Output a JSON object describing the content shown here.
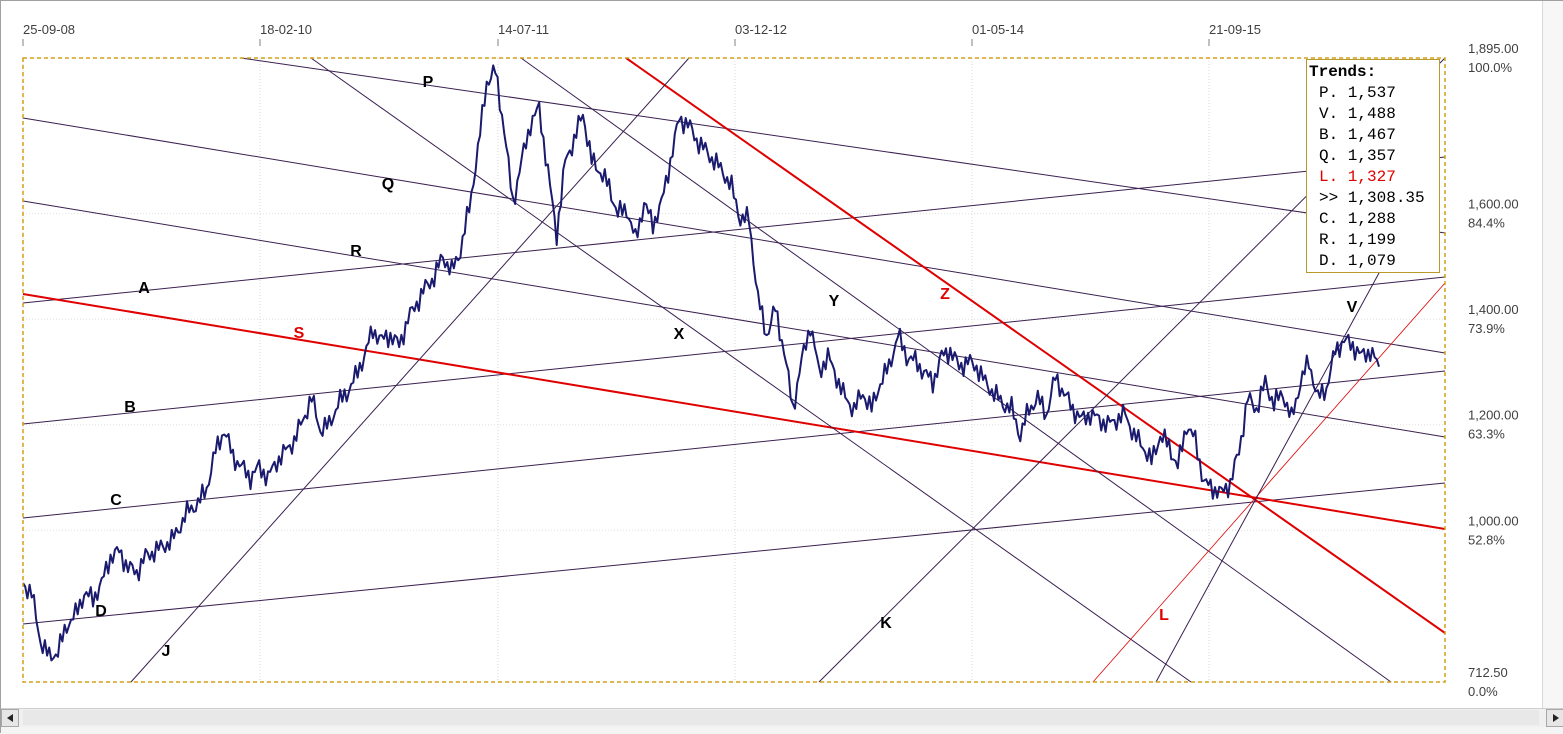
{
  "chart_data": {
    "type": "line",
    "x_tick_labels": [
      "25-09-08",
      "18-02-10",
      "14-07-11",
      "03-12-12",
      "01-05-14",
      "21-09-15"
    ],
    "y_ticks": [
      {
        "price": "1,895.00",
        "pct": "100.0%",
        "value": 1895
      },
      {
        "price": "1,600.00",
        "pct": "84.4%",
        "value": 1600
      },
      {
        "price": "1,400.00",
        "pct": "73.9%",
        "value": 1400
      },
      {
        "price": "1,200.00",
        "pct": "63.3%",
        "value": 1200
      },
      {
        "price": "1,000.00",
        "pct": "52.8%",
        "value": 1000
      },
      {
        "price": "712.50",
        "pct": "0.0%",
        "value": 712.5
      }
    ],
    "ylim": [
      712.5,
      1895
    ],
    "grid": true,
    "series_color": "#1a1a6e",
    "trend_color": "#3a2050",
    "accent_red": "#e00000",
    "series": [
      {
        "values": [
          900,
          880,
          790,
          760,
          770,
          820,
          840,
          880,
          870,
          900,
          950,
          960,
          930,
          920,
          950,
          960,
          970,
          980,
          1010,
          1040,
          1050,
          1080,
          1150,
          1190,
          1140,
          1120,
          1100,
          1120,
          1100,
          1130,
          1150,
          1170,
          1210,
          1250,
          1190,
          1200,
          1240,
          1260,
          1290,
          1330,
          1380,
          1360,
          1370,
          1350,
          1400,
          1430,
          1460,
          1480,
          1520,
          1490,
          1530,
          1610,
          1720,
          1850,
          1870,
          1760,
          1620,
          1700,
          1770,
          1800,
          1680,
          1560,
          1700,
          1740,
          1790,
          1700,
          1680,
          1650,
          1600,
          1610,
          1550,
          1620,
          1580,
          1620,
          1700,
          1780,
          1770,
          1740,
          1720,
          1700,
          1680,
          1650,
          1590,
          1590,
          1440,
          1370,
          1420,
          1340,
          1230,
          1320,
          1390,
          1300,
          1330,
          1290,
          1250,
          1230,
          1260,
          1230,
          1280,
          1310,
          1370,
          1330,
          1320,
          1300,
          1280,
          1330,
          1340,
          1310,
          1320,
          1310,
          1280,
          1260,
          1240,
          1230,
          1180,
          1230,
          1250,
          1220,
          1290,
          1260,
          1230,
          1210,
          1220,
          1210,
          1200,
          1210,
          1220,
          1180,
          1160,
          1130,
          1180,
          1160,
          1120,
          1200,
          1170,
          1090,
          1080,
          1070,
          1090,
          1150,
          1250,
          1230,
          1280,
          1240,
          1260,
          1210,
          1280,
          1320,
          1250,
          1270,
          1340,
          1360,
          1350,
          1330,
          1340,
          1310
        ]
      }
    ],
    "trend_lines": [
      "P",
      "Q",
      "R",
      "A",
      "B",
      "C",
      "D",
      "S",
      "X",
      "Y",
      "Z",
      "J",
      "K",
      "L",
      "V"
    ],
    "legend": {
      "title": "Trends:",
      "items": [
        {
          "text": "P. 1,537",
          "red": false
        },
        {
          "text": "V. 1,488",
          "red": false
        },
        {
          "text": "B. 1,467",
          "red": false
        },
        {
          "text": "Q. 1,357",
          "red": false
        },
        {
          "text": "L. 1,327",
          "red": true
        },
        {
          "text": ">> 1,308.35",
          "red": false
        },
        {
          "text": "C. 1,288",
          "red": false
        },
        {
          "text": "R. 1,199",
          "red": false
        },
        {
          "text": "D. 1,079",
          "red": false
        }
      ]
    }
  }
}
